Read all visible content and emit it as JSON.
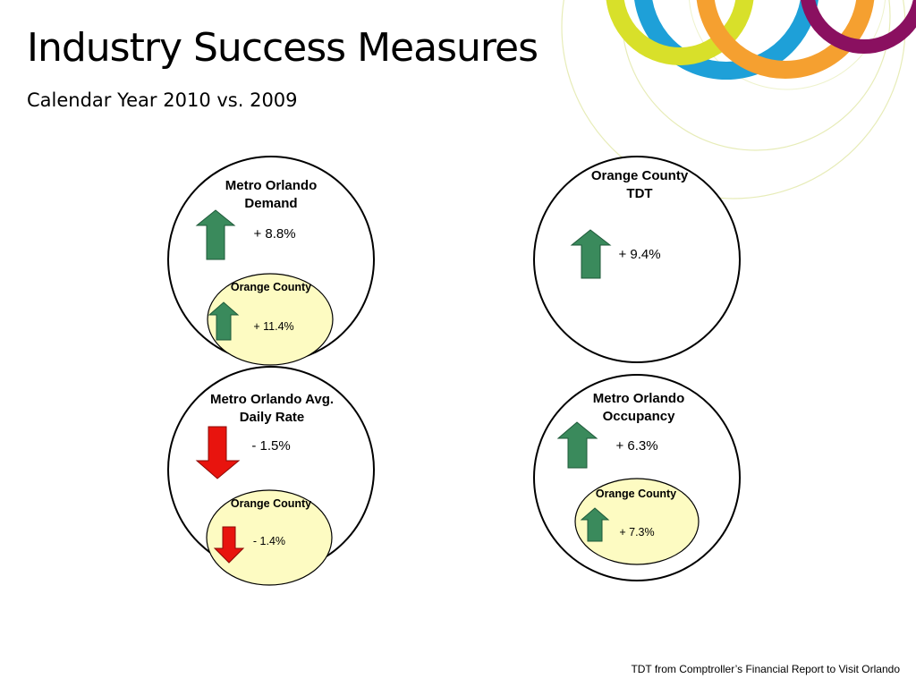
{
  "slide": {
    "title": "Industry Success Measures",
    "subtitle": "Calendar Year 2010 vs. 2009",
    "footnote": "TDT from Comptroller’s Financial Report to Visit Orlando"
  },
  "colors": {
    "up_arrow": "#3a8a5c",
    "down_arrow": "#e8140e",
    "inner_fill": "#fdfbc2",
    "ring_yellow": "#d8e02a",
    "ring_green": "#1e9a5a",
    "ring_orange": "#f5a030",
    "ring_blue": "#1ea0d8",
    "ring_purple": "#8a1060"
  },
  "icons": [
    "up-arrow-icon",
    "down-arrow-icon"
  ],
  "measures": [
    {
      "heading": "Metro Orlando Demand",
      "value": "+ 8.8%",
      "direction": "up",
      "orange_county": {
        "heading": "Orange County",
        "value": "+ 11.4%",
        "direction": "up"
      }
    },
    {
      "heading": "Orange County TDT",
      "value": "+ 9.4%",
      "direction": "up"
    },
    {
      "heading": "Metro Orlando Avg. Daily Rate",
      "value": "- 1.5%",
      "direction": "down",
      "orange_county": {
        "heading": "Orange County",
        "value": "- 1.4%",
        "direction": "down"
      }
    },
    {
      "heading": "Metro Orlando Occupancy",
      "value": "+ 6.3%",
      "direction": "up",
      "orange_county": {
        "heading": "Orange County",
        "value": "+ 7.3%",
        "direction": "up"
      }
    }
  ]
}
